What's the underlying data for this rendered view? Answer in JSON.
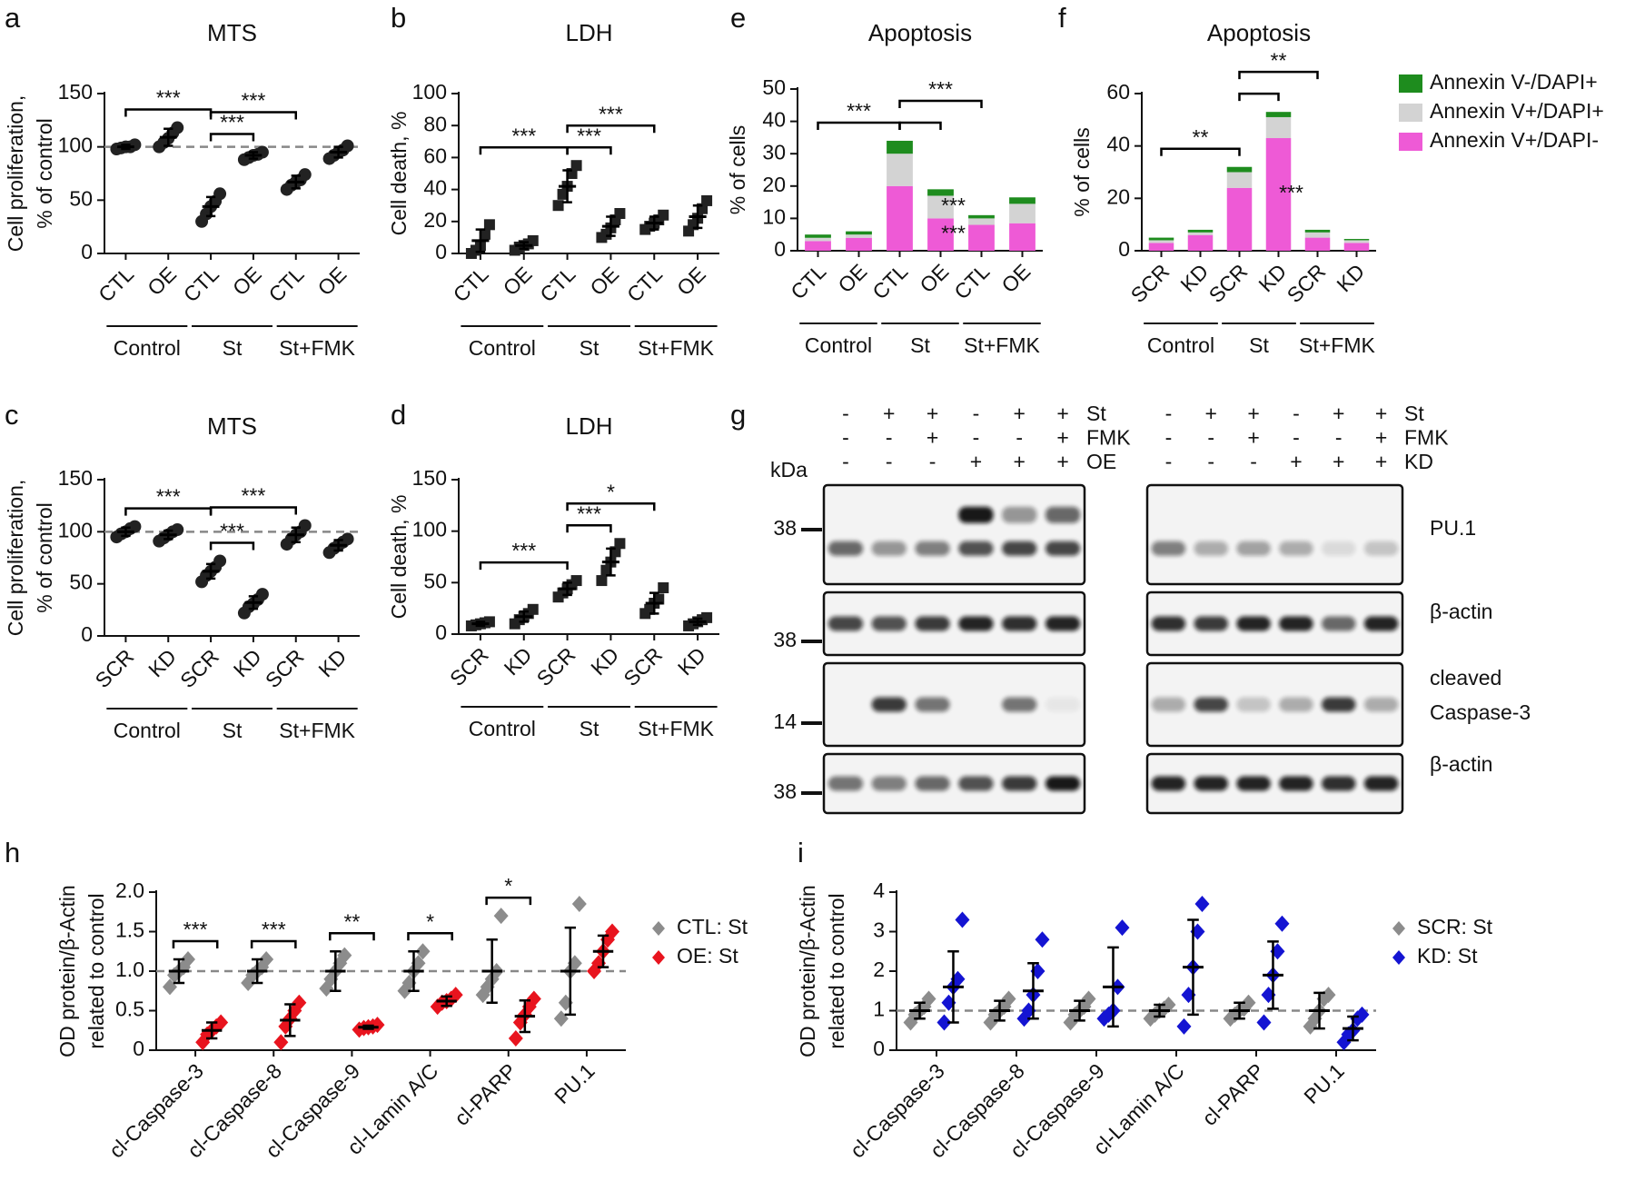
{
  "chart_data": [
    {
      "type": "dotplot",
      "panel": "a",
      "title": "MTS",
      "ylabel": [
        "Cell proliferation,",
        "% of control"
      ],
      "categories": [
        "CTL",
        "OE",
        "CTL",
        "OE",
        "CTL",
        "OE"
      ],
      "groups": [
        "Control",
        "St",
        "St+FMK"
      ],
      "ylim": [
        0,
        150
      ],
      "yticks": [
        0,
        50,
        100,
        150
      ],
      "reference_line": 100,
      "series": [
        {
          "color": "#222222",
          "marker": "circle",
          "values": [
            [
              98,
              99,
              100,
              100,
              102
            ],
            [
              100,
              104,
              108,
              113,
              118
            ],
            [
              30,
              37,
              44,
              49,
              56
            ],
            [
              88,
              90,
              92,
              93,
              95
            ],
            [
              60,
              64,
              67,
              69,
              74
            ],
            [
              89,
              92,
              95,
              97,
              101
            ]
          ],
          "means": [
            100,
            109,
            44,
            92,
            67,
            95
          ],
          "sd": [
            2,
            8,
            9,
            3,
            6,
            5
          ]
        }
      ],
      "comparisons": [
        {
          "pair": [
            0,
            2
          ],
          "label": "***"
        },
        {
          "pair": [
            2,
            3
          ],
          "label": "***"
        },
        {
          "pair": [
            2,
            4
          ],
          "label": "***"
        }
      ]
    },
    {
      "type": "dotplot",
      "panel": "b",
      "title": "LDH",
      "ylabel": [
        "Cell death, %"
      ],
      "categories": [
        "CTL",
        "OE",
        "CTL",
        "OE",
        "CTL",
        "OE"
      ],
      "groups": [
        "Control",
        "St",
        "St+FMK"
      ],
      "ylim": [
        0,
        100
      ],
      "yticks": [
        0,
        20,
        40,
        60,
        80,
        100
      ],
      "series": [
        {
          "color": "#222222",
          "marker": "square",
          "values": [
            [
              0,
              2,
              5,
              12,
              18
            ],
            [
              2,
              4,
              5,
              6,
              8
            ],
            [
              30,
              37,
              42,
              50,
              55
            ],
            [
              10,
              12,
              16,
              21,
              25
            ],
            [
              15,
              17,
              19,
              21,
              24
            ],
            [
              14,
              18,
              22,
              28,
              33
            ]
          ],
          "means": [
            8,
            5,
            42,
            17,
            19,
            23
          ],
          "sd": [
            7,
            2,
            10,
            6,
            4,
            7
          ]
        }
      ],
      "comparisons": [
        {
          "pair": [
            0,
            2
          ],
          "label": "***"
        },
        {
          "pair": [
            2,
            3
          ],
          "label": "***"
        },
        {
          "pair": [
            2,
            4
          ],
          "label": "***"
        }
      ]
    },
    {
      "type": "dotplot",
      "panel": "c",
      "title": "MTS",
      "ylabel": [
        "Cell proliferation,",
        "% of control"
      ],
      "categories": [
        "SCR",
        "KD",
        "SCR",
        "KD",
        "SCR",
        "KD"
      ],
      "groups": [
        "Control",
        "St",
        "St+FMK"
      ],
      "ylim": [
        0,
        150
      ],
      "yticks": [
        0,
        50,
        100,
        150
      ],
      "reference_line": 100,
      "series": [
        {
          "color": "#222222",
          "marker": "circle",
          "values": [
            [
              95,
              98,
              100,
              103,
              105
            ],
            [
              91,
              94,
              97,
              100,
              102
            ],
            [
              52,
              58,
              62,
              66,
              72
            ],
            [
              22,
              28,
              31,
              35,
              40
            ],
            [
              88,
              93,
              97,
              100,
              106
            ],
            [
              80,
              84,
              87,
              90,
              93
            ]
          ],
          "means": [
            100,
            97,
            62,
            32,
            97,
            87
          ],
          "sd": [
            4,
            4,
            7,
            6,
            7,
            5
          ]
        }
      ],
      "comparisons": [
        {
          "pair": [
            0,
            2
          ],
          "label": "***"
        },
        {
          "pair": [
            2,
            3
          ],
          "label": "***"
        },
        {
          "pair": [
            2,
            4
          ],
          "label": "***"
        }
      ]
    },
    {
      "type": "dotplot",
      "panel": "d",
      "title": "LDH",
      "ylabel": [
        "Cell death, %"
      ],
      "categories": [
        "SCR",
        "KD",
        "SCR",
        "KD",
        "SCR",
        "KD"
      ],
      "groups": [
        "Control",
        "St",
        "St+FMK"
      ],
      "ylim": [
        0,
        150
      ],
      "yticks": [
        0,
        50,
        100,
        150
      ],
      "series": [
        {
          "color": "#222222",
          "marker": "square",
          "values": [
            [
              8,
              9,
              10,
              11,
              12
            ],
            [
              10,
              14,
              17,
              20,
              24
            ],
            [
              36,
              40,
              44,
              48,
              52
            ],
            [
              52,
              62,
              70,
              80,
              88
            ],
            [
              20,
              24,
              30,
              34,
              45
            ],
            [
              8,
              10,
              12,
              14,
              16
            ]
          ],
          "means": [
            10,
            17,
            44,
            70,
            30,
            12
          ],
          "sd": [
            2,
            5,
            6,
            13,
            10,
            3
          ]
        }
      ],
      "comparisons": [
        {
          "pair": [
            0,
            2
          ],
          "label": "***"
        },
        {
          "pair": [
            2,
            3
          ],
          "label": "***"
        },
        {
          "pair": [
            2,
            4
          ],
          "label": "*"
        }
      ]
    },
    {
      "type": "stacked_bar",
      "panel": "e",
      "title": "Apoptosis",
      "ylabel": [
        "% of cells"
      ],
      "categories": [
        "CTL",
        "OE",
        "CTL",
        "OE",
        "CTL",
        "OE"
      ],
      "groups": [
        "Control",
        "St",
        "St+FMK"
      ],
      "ylim": [
        0,
        50
      ],
      "yticks": [
        0,
        10,
        20,
        30,
        40,
        50
      ],
      "series": [
        {
          "name": "Annexin V+/DAPI-",
          "color": "#ee5ad6",
          "values": [
            3,
            4,
            20,
            10,
            8,
            8.5
          ]
        },
        {
          "name": "Annexin V+/DAPI+",
          "color": "#d3d3d3",
          "values": [
            1,
            1,
            10,
            7,
            2,
            6
          ]
        },
        {
          "name": "Annexin V-/DAPI+",
          "color": "#1e8c1e",
          "values": [
            1,
            1,
            4,
            2,
            1,
            2
          ]
        }
      ],
      "comparisons": [
        {
          "pair": [
            0,
            2
          ],
          "label": "***"
        },
        {
          "pair": [
            2,
            3
          ]
        },
        {
          "pair": [
            2,
            4
          ],
          "label": "***"
        }
      ],
      "annotations": [
        {
          "text": "***",
          "category": 3,
          "series": 0
        },
        {
          "text": "***",
          "category": 3,
          "series": 1
        }
      ]
    },
    {
      "type": "stacked_bar",
      "panel": "f",
      "title": "Apoptosis",
      "ylabel": [
        "% of cells"
      ],
      "legend": "right",
      "categories": [
        "SCR",
        "KD",
        "SCR",
        "KD",
        "SCR",
        "KD"
      ],
      "groups": [
        "Control",
        "St",
        "St+FMK"
      ],
      "ylim": [
        0,
        60
      ],
      "yticks": [
        0,
        20,
        40,
        60
      ],
      "series": [
        {
          "name": "Annexin V+/DAPI-",
          "color": "#ee5ad6",
          "values": [
            3,
            6,
            24,
            43,
            5,
            3
          ]
        },
        {
          "name": "Annexin V+/DAPI+",
          "color": "#d3d3d3",
          "values": [
            1,
            1,
            6,
            8,
            2,
            1
          ]
        },
        {
          "name": "Annexin V-/DAPI+",
          "color": "#1e8c1e",
          "values": [
            1,
            1,
            2,
            2,
            1,
            0.5
          ]
        }
      ],
      "comparisons": [
        {
          "pair": [
            0,
            2
          ],
          "label": "**"
        },
        {
          "pair": [
            2,
            3
          ]
        },
        {
          "pair": [
            2,
            4
          ],
          "label": "**"
        }
      ],
      "annotations": [
        {
          "text": "***",
          "category": 3,
          "series": 0
        }
      ]
    },
    {
      "type": "dotplot",
      "panel": "h",
      "ylabel": [
        "OD protein/β-Actin",
        "related to control"
      ],
      "legend": "right",
      "categories": [
        "cl-Caspase-3",
        "cl-Caspase-8",
        "cl-Caspase-9",
        "cl-Lamin A/C",
        "cl-PARP",
        "PU.1"
      ],
      "ylim": [
        0,
        2
      ],
      "yticks": [
        0,
        0.5,
        {
          "value": 1,
          "label": "1.0"
        },
        1.5,
        {
          "value": 2,
          "label": "2.0"
        }
      ],
      "reference_line": 1,
      "series": [
        {
          "name": "CTL: St",
          "color": "#8c8c8c",
          "marker": "diamond",
          "values": [
            [
              0.8,
              0.95,
              1.0,
              1.05,
              1.15
            ],
            [
              0.85,
              0.95,
              1.0,
              1.05,
              1.15
            ],
            [
              0.78,
              0.9,
              1.0,
              1.1,
              1.2
            ],
            [
              0.75,
              0.85,
              1.0,
              1.1,
              1.25
            ],
            [
              0.7,
              0.8,
              0.9,
              1.0,
              1.7
            ],
            [
              0.4,
              0.6,
              1.0,
              1.1,
              1.85
            ]
          ],
          "means": [
            1,
            1,
            1,
            1,
            1,
            1
          ],
          "sd": [
            0.15,
            0.15,
            0.25,
            0.25,
            0.4,
            0.55
          ]
        },
        {
          "name": "OE: St",
          "color": "#e8141e",
          "marker": "diamond",
          "values": [
            [
              0.1,
              0.2,
              0.25,
              0.3,
              0.35
            ],
            [
              0.1,
              0.3,
              0.4,
              0.5,
              0.6
            ],
            [
              0.26,
              0.28,
              0.29,
              0.3,
              0.32
            ],
            [
              0.55,
              0.6,
              0.62,
              0.65,
              0.7
            ],
            [
              0.15,
              0.35,
              0.45,
              0.55,
              0.65
            ],
            [
              1.0,
              1.1,
              1.25,
              1.4,
              1.5
            ]
          ],
          "means": [
            0.25,
            0.38,
            0.29,
            0.62,
            0.43,
            1.25
          ],
          "sd": [
            0.1,
            0.2,
            0.02,
            0.06,
            0.2,
            0.2
          ]
        }
      ],
      "comparisons": [
        {
          "pair": [
            0,
            0
          ],
          "label": "***"
        },
        {
          "pair": [
            1,
            1
          ],
          "label": "***"
        },
        {
          "pair": [
            2,
            2
          ],
          "label": "**"
        },
        {
          "pair": [
            3,
            3
          ],
          "label": "*"
        },
        {
          "pair": [
            4,
            4
          ],
          "label": "*"
        }
      ]
    },
    {
      "type": "dotplot",
      "panel": "i",
      "ylabel": [
        "OD protein/β-Actin",
        "related to control"
      ],
      "legend": "right",
      "categories": [
        "cl-Caspase-3",
        "cl-Caspase-8",
        "cl-Caspase-9",
        "cl-Lamin A/C",
        "cl-PARP",
        "PU.1"
      ],
      "ylim": [
        0,
        4
      ],
      "yticks": [
        0,
        1,
        2,
        3,
        4
      ],
      "reference_line": 1,
      "series": [
        {
          "name": "SCR: St",
          "color": "#8c8c8c",
          "marker": "diamond",
          "values": [
            [
              0.7,
              0.9,
              1.0,
              1.1,
              1.3
            ],
            [
              0.7,
              0.9,
              1.0,
              1.1,
              1.3
            ],
            [
              0.7,
              0.9,
              1.0,
              1.1,
              1.3
            ],
            [
              0.8,
              0.9,
              1.0,
              1.05,
              1.15
            ],
            [
              0.8,
              0.9,
              1.0,
              1.05,
              1.2
            ],
            [
              0.6,
              0.8,
              1.0,
              1.3,
              1.4
            ]
          ],
          "means": [
            1,
            1,
            1,
            1,
            1,
            1
          ],
          "sd": [
            0.2,
            0.25,
            0.25,
            0.15,
            0.2,
            0.45
          ]
        },
        {
          "name": "KD: St",
          "color": "#1414d2",
          "marker": "diamond",
          "values": [
            [
              0.7,
              1.2,
              1.6,
              1.8,
              3.3
            ],
            [
              0.8,
              1.0,
              1.4,
              2.0,
              2.8
            ],
            [
              0.8,
              0.9,
              1.0,
              1.6,
              3.1
            ],
            [
              0.6,
              1.4,
              2.1,
              3.0,
              3.7
            ],
            [
              0.7,
              1.4,
              1.9,
              2.5,
              3.2
            ],
            [
              0.2,
              0.4,
              0.5,
              0.8,
              0.9
            ]
          ],
          "means": [
            1.6,
            1.5,
            1.6,
            2.1,
            1.9,
            0.55
          ],
          "sd": [
            0.9,
            0.7,
            1.0,
            1.2,
            0.85,
            0.3
          ]
        }
      ]
    }
  ],
  "blot": {
    "panel": "g",
    "kda": "kDa",
    "left": {
      "rows": [
        {
          "name": "St",
          "marks": [
            "-",
            "+",
            "+",
            "-",
            "+",
            "+"
          ]
        },
        {
          "name": "FMK",
          "marks": [
            "-",
            "-",
            "+",
            "-",
            "-",
            "+"
          ]
        },
        {
          "name": "OE",
          "marks": [
            "-",
            "-",
            "-",
            "+",
            "+",
            "+"
          ]
        }
      ],
      "markers": [
        "38",
        "38",
        "14",
        "38"
      ]
    },
    "right": {
      "rows": [
        {
          "name": "St",
          "marks": [
            "-",
            "+",
            "+",
            "-",
            "+",
            "+"
          ]
        },
        {
          "name": "FMK",
          "marks": [
            "-",
            "-",
            "+",
            "-",
            "-",
            "+"
          ]
        },
        {
          "name": "KD",
          "marks": [
            "-",
            "-",
            "-",
            "+",
            "+",
            "+"
          ]
        }
      ]
    },
    "labels": [
      [
        "PU.1"
      ],
      [
        "β-actin"
      ],
      [
        "cleaved",
        "Caspase-3"
      ],
      [
        "β-actin"
      ]
    ]
  }
}
